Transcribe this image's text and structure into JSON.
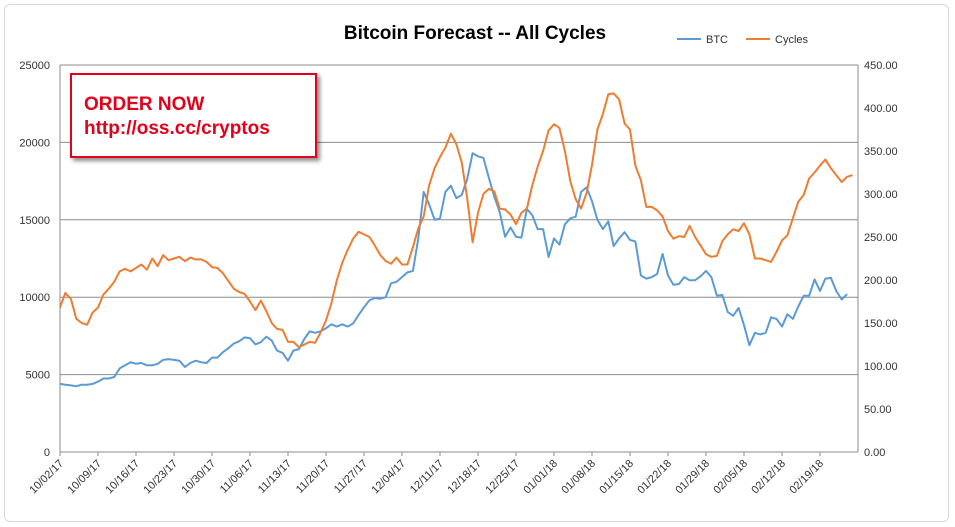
{
  "promo": {
    "line1": "ORDER NOW",
    "line2": "http://oss.cc/cryptos",
    "border_color": "#e2001a"
  },
  "chart_data": {
    "type": "line",
    "title": "Bitcoin Forecast -- All Cycles",
    "legend_position": "top-right",
    "grid": true,
    "x_tick_labels": [
      "10/02/17",
      "10/09/17",
      "10/16/17",
      "10/23/17",
      "10/30/17",
      "11/06/17",
      "11/13/17",
      "11/20/17",
      "11/27/17",
      "12/04/17",
      "12/11/17",
      "12/18/17",
      "12/25/17",
      "01/01/18",
      "01/08/18",
      "01/15/18",
      "01/22/18",
      "01/29/18",
      "02/05/18",
      "02/12/18",
      "02/19/18"
    ],
    "x_range_days": [
      0,
      147
    ],
    "y_left": {
      "min": 0,
      "max": 25000,
      "ticks": [
        "0",
        "5000",
        "10000",
        "15000",
        "20000",
        "25000"
      ]
    },
    "y_right": {
      "min": 0,
      "max": 450,
      "ticks": [
        "0.00",
        "50.00",
        "100.00",
        "150.00",
        "200.00",
        "250.00",
        "300.00",
        "350.00",
        "400.00",
        "450.00"
      ]
    },
    "series": [
      {
        "name": "BTC",
        "axis": "left",
        "color": "#5b9bd5",
        "points": [
          [
            0,
            4400
          ],
          [
            1,
            4350
          ],
          [
            2,
            4300
          ],
          [
            3,
            4250
          ],
          [
            4,
            4350
          ],
          [
            5,
            4350
          ],
          [
            6,
            4400
          ],
          [
            7,
            4550
          ],
          [
            8,
            4750
          ],
          [
            9,
            4750
          ],
          [
            10,
            4850
          ],
          [
            11,
            5400
          ],
          [
            12,
            5600
          ],
          [
            13,
            5800
          ],
          [
            14,
            5700
          ],
          [
            15,
            5750
          ],
          [
            16,
            5600
          ],
          [
            17,
            5600
          ],
          [
            18,
            5700
          ],
          [
            19,
            5950
          ],
          [
            20,
            6000
          ],
          [
            21,
            5950
          ],
          [
            22,
            5900
          ],
          [
            23,
            5500
          ],
          [
            24,
            5750
          ],
          [
            25,
            5900
          ],
          [
            26,
            5800
          ],
          [
            27,
            5750
          ],
          [
            28,
            6100
          ],
          [
            29,
            6100
          ],
          [
            30,
            6450
          ],
          [
            31,
            6700
          ],
          [
            32,
            7000
          ],
          [
            33,
            7150
          ],
          [
            34,
            7400
          ],
          [
            35,
            7350
          ],
          [
            36,
            6950
          ],
          [
            37,
            7100
          ],
          [
            38,
            7450
          ],
          [
            39,
            7200
          ],
          [
            40,
            6550
          ],
          [
            41,
            6400
          ],
          [
            42,
            5900
          ],
          [
            43,
            6550
          ],
          [
            44,
            6650
          ],
          [
            45,
            7300
          ],
          [
            46,
            7800
          ],
          [
            47,
            7700
          ],
          [
            48,
            7800
          ],
          [
            49,
            8000
          ],
          [
            50,
            8250
          ],
          [
            51,
            8100
          ],
          [
            52,
            8250
          ],
          [
            53,
            8100
          ],
          [
            54,
            8300
          ],
          [
            55,
            8850
          ],
          [
            56,
            9350
          ],
          [
            57,
            9800
          ],
          [
            58,
            9950
          ],
          [
            59,
            9900
          ],
          [
            60,
            10000
          ],
          [
            61,
            10900
          ],
          [
            62,
            11000
          ],
          [
            63,
            11300
          ],
          [
            64,
            11600
          ],
          [
            65,
            11700
          ],
          [
            66,
            13800
          ],
          [
            67,
            16800
          ],
          [
            68,
            16000
          ],
          [
            69,
            15000
          ],
          [
            70,
            15100
          ],
          [
            71,
            16800
          ],
          [
            72,
            17200
          ],
          [
            73,
            16400
          ],
          [
            74,
            16600
          ],
          [
            75,
            17600
          ],
          [
            76,
            19300
          ],
          [
            77,
            19100
          ],
          [
            78,
            19000
          ],
          [
            79,
            17700
          ],
          [
            80,
            16500
          ],
          [
            81,
            15500
          ],
          [
            82,
            13900
          ],
          [
            83,
            14500
          ],
          [
            84,
            13900
          ],
          [
            85,
            13850
          ],
          [
            86,
            15700
          ],
          [
            87,
            15300
          ],
          [
            88,
            14400
          ],
          [
            89,
            14400
          ],
          [
            90,
            12600
          ],
          [
            91,
            13800
          ],
          [
            92,
            13400
          ],
          [
            93,
            14700
          ],
          [
            94,
            15100
          ],
          [
            95,
            15200
          ],
          [
            96,
            16800
          ],
          [
            97,
            17100
          ],
          [
            98,
            16200
          ],
          [
            99,
            15000
          ],
          [
            100,
            14400
          ],
          [
            101,
            14900
          ],
          [
            102,
            13300
          ],
          [
            103,
            13800
          ],
          [
            104,
            14200
          ],
          [
            105,
            13700
          ],
          [
            106,
            13600
          ],
          [
            107,
            11400
          ],
          [
            108,
            11200
          ],
          [
            109,
            11300
          ],
          [
            110,
            11500
          ],
          [
            111,
            12800
          ],
          [
            112,
            11400
          ],
          [
            113,
            10800
          ],
          [
            114,
            10850
          ],
          [
            115,
            11300
          ],
          [
            116,
            11100
          ],
          [
            117,
            11100
          ],
          [
            118,
            11350
          ],
          [
            119,
            11700
          ],
          [
            120,
            11300
          ],
          [
            121,
            10100
          ],
          [
            122,
            10150
          ],
          [
            123,
            9050
          ],
          [
            124,
            8800
          ],
          [
            125,
            9300
          ],
          [
            126,
            8200
          ],
          [
            127,
            6900
          ],
          [
            128,
            7700
          ],
          [
            129,
            7600
          ],
          [
            130,
            7700
          ],
          [
            131,
            8700
          ],
          [
            132,
            8600
          ],
          [
            133,
            8100
          ],
          [
            134,
            8900
          ],
          [
            135,
            8600
          ],
          [
            136,
            9400
          ],
          [
            137,
            10100
          ],
          [
            138,
            10100
          ],
          [
            139,
            11150
          ],
          [
            140,
            10400
          ],
          [
            141,
            11200
          ],
          [
            142,
            11250
          ],
          [
            143,
            10400
          ],
          [
            144,
            9850
          ],
          [
            145,
            10200
          ]
        ]
      },
      {
        "name": "Cycles",
        "axis": "right",
        "color": "#ed7d31",
        "points": [
          [
            0,
            168
          ],
          [
            1,
            185
          ],
          [
            2,
            178
          ],
          [
            3,
            155
          ],
          [
            4,
            150
          ],
          [
            5,
            148
          ],
          [
            6,
            162
          ],
          [
            7,
            168
          ],
          [
            8,
            183
          ],
          [
            9,
            190
          ],
          [
            10,
            198
          ],
          [
            11,
            210
          ],
          [
            12,
            213
          ],
          [
            13,
            210
          ],
          [
            14,
            214
          ],
          [
            15,
            218
          ],
          [
            16,
            212
          ],
          [
            17,
            225
          ],
          [
            18,
            216
          ],
          [
            19,
            229
          ],
          [
            20,
            223
          ],
          [
            21,
            225
          ],
          [
            22,
            227
          ],
          [
            23,
            222
          ],
          [
            24,
            226
          ],
          [
            25,
            224
          ],
          [
            26,
            224
          ],
          [
            27,
            221
          ],
          [
            28,
            215
          ],
          [
            29,
            214
          ],
          [
            30,
            208
          ],
          [
            31,
            199
          ],
          [
            32,
            190
          ],
          [
            33,
            186
          ],
          [
            34,
            184
          ],
          [
            35,
            175
          ],
          [
            36,
            165
          ],
          [
            37,
            176
          ],
          [
            38,
            164
          ],
          [
            39,
            150
          ],
          [
            40,
            143
          ],
          [
            41,
            142
          ],
          [
            42,
            128
          ],
          [
            43,
            128
          ],
          [
            44,
            122
          ],
          [
            45,
            125
          ],
          [
            46,
            128
          ],
          [
            47,
            127
          ],
          [
            48,
            139
          ],
          [
            49,
            153
          ],
          [
            50,
            173
          ],
          [
            51,
            200
          ],
          [
            52,
            220
          ],
          [
            53,
            235
          ],
          [
            54,
            248
          ],
          [
            55,
            256
          ],
          [
            56,
            253
          ],
          [
            57,
            250
          ],
          [
            58,
            240
          ],
          [
            59,
            229
          ],
          [
            60,
            222
          ],
          [
            61,
            219
          ],
          [
            62,
            226
          ],
          [
            63,
            218
          ],
          [
            64,
            218
          ],
          [
            65,
            238
          ],
          [
            66,
            260
          ],
          [
            67,
            274
          ],
          [
            68,
            310
          ],
          [
            69,
            330
          ],
          [
            70,
            343
          ],
          [
            71,
            354
          ],
          [
            72,
            370
          ],
          [
            73,
            358
          ],
          [
            74,
            337
          ],
          [
            75,
            296
          ],
          [
            76,
            244
          ],
          [
            77,
            278
          ],
          [
            78,
            300
          ],
          [
            79,
            306
          ],
          [
            80,
            303
          ],
          [
            81,
            283
          ],
          [
            82,
            282
          ],
          [
            83,
            276
          ],
          [
            84,
            265
          ],
          [
            85,
            278
          ],
          [
            86,
            283
          ],
          [
            87,
            310
          ],
          [
            88,
            332
          ],
          [
            89,
            350
          ],
          [
            90,
            374
          ],
          [
            91,
            381
          ],
          [
            92,
            377
          ],
          [
            93,
            350
          ],
          [
            94,
            315
          ],
          [
            95,
            294
          ],
          [
            96,
            283
          ],
          [
            97,
            301
          ],
          [
            98,
            334
          ],
          [
            99,
            375
          ],
          [
            100,
            393
          ],
          [
            101,
            416
          ],
          [
            102,
            417
          ],
          [
            103,
            410
          ],
          [
            104,
            382
          ],
          [
            105,
            375
          ],
          [
            106,
            333
          ],
          [
            107,
            316
          ],
          [
            108,
            285
          ],
          [
            109,
            285
          ],
          [
            110,
            281
          ],
          [
            111,
            274
          ],
          [
            112,
            257
          ],
          [
            113,
            248
          ],
          [
            114,
            251
          ],
          [
            115,
            250
          ],
          [
            116,
            263
          ],
          [
            117,
            250
          ],
          [
            118,
            240
          ],
          [
            119,
            230
          ],
          [
            120,
            227
          ],
          [
            121,
            228
          ],
          [
            122,
            245
          ],
          [
            123,
            253
          ],
          [
            124,
            259
          ],
          [
            125,
            257
          ],
          [
            126,
            266
          ],
          [
            127,
            253
          ],
          [
            128,
            225
          ],
          [
            129,
            225
          ],
          [
            130,
            223
          ],
          [
            131,
            221
          ],
          [
            132,
            233
          ],
          [
            133,
            246
          ],
          [
            134,
            252
          ],
          [
            135,
            272
          ],
          [
            136,
            291
          ],
          [
            137,
            299
          ],
          [
            138,
            318
          ],
          [
            139,
            325
          ],
          [
            140,
            333
          ],
          [
            141,
            340
          ],
          [
            142,
            330
          ],
          [
            143,
            322
          ],
          [
            144,
            314
          ],
          [
            145,
            320
          ],
          [
            146,
            322
          ]
        ]
      }
    ]
  }
}
